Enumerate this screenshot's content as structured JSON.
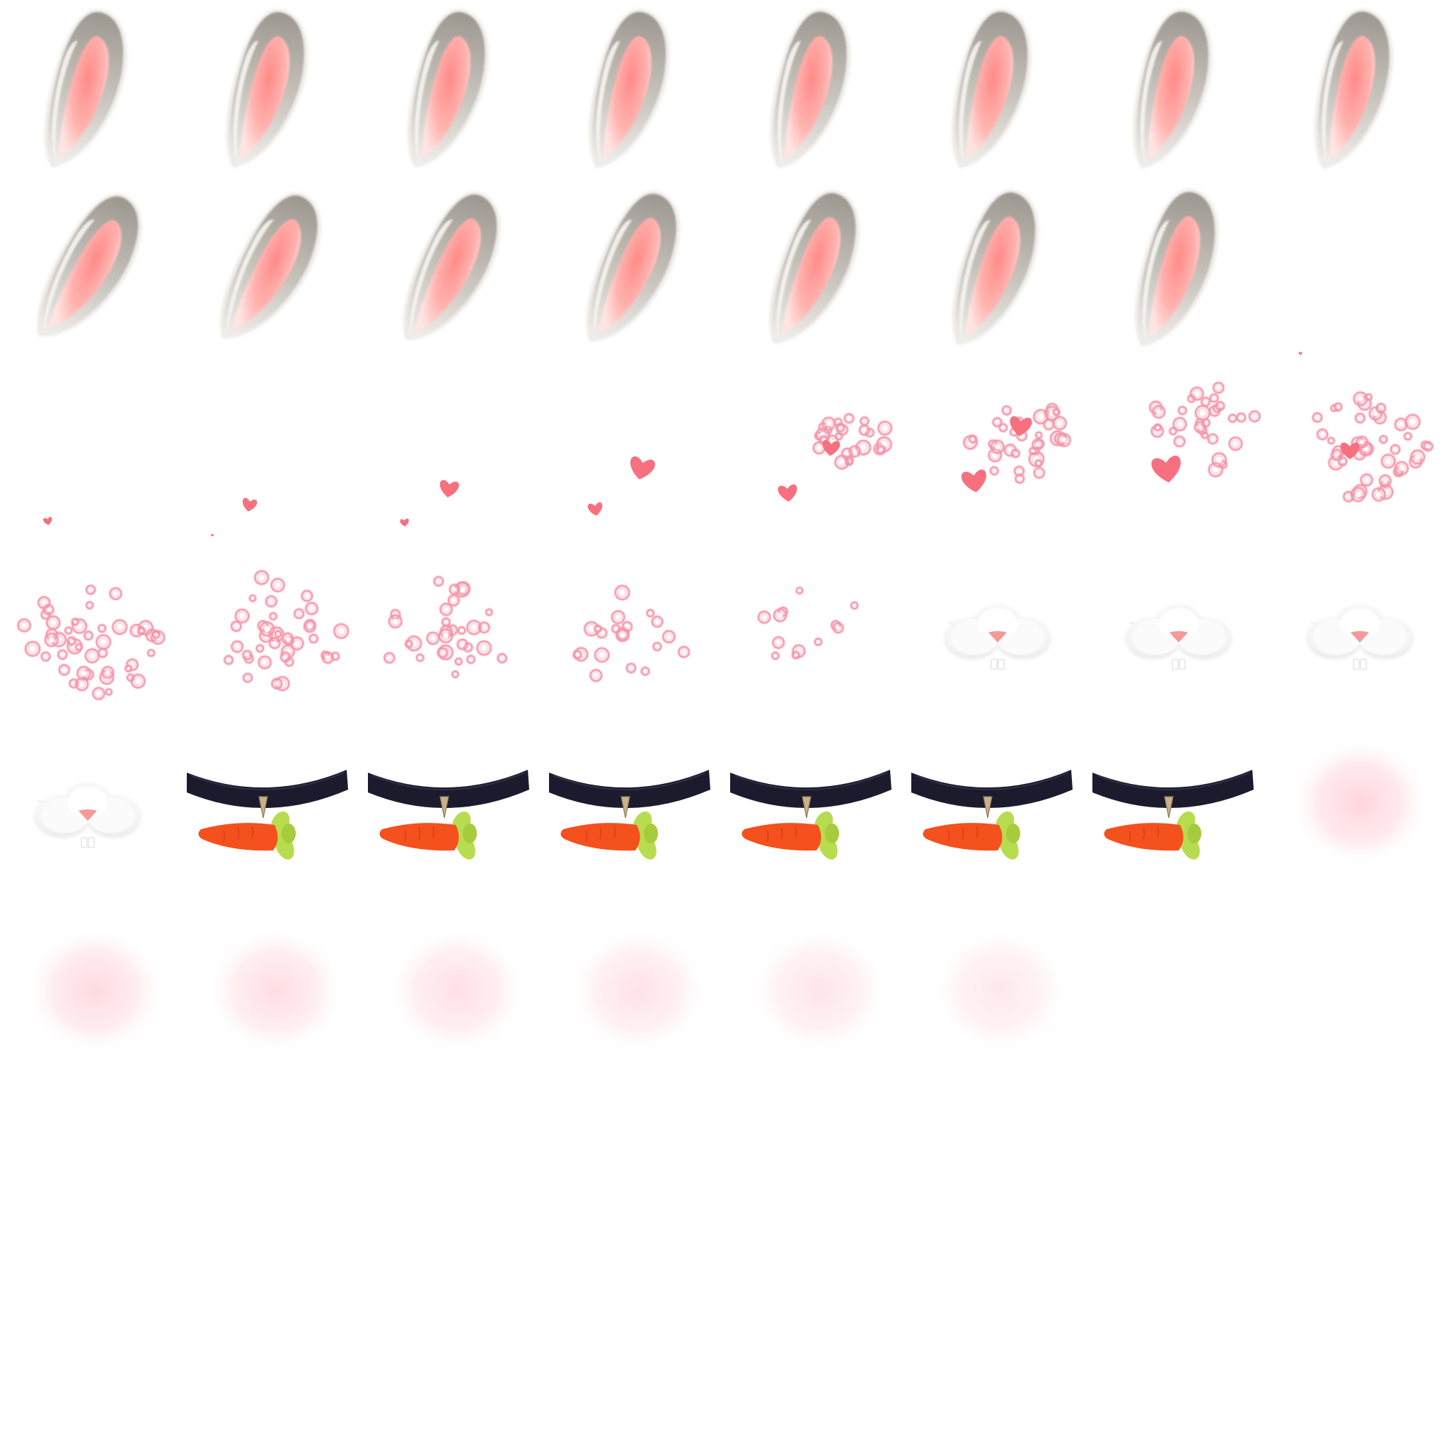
{
  "sprite_sheet": {
    "columns": 8,
    "background": "#ffffff",
    "colors": {
      "ear_fur": "#a7a29b",
      "ear_fur_light": "#e9e6e1",
      "ear_inner": "#ff8e8c",
      "ear_inner_light": "#ffd0ce",
      "heart": "#f6707f",
      "sparkle": "#f7a8b7",
      "nose_fur": "#fafafa",
      "nose": "#f59a98",
      "choker": "#1c1b2e",
      "pendant": "#c8b28a",
      "carrot": "#f4511e",
      "carrot_leaf": "#b8dc4f",
      "blush": "#ffd6dc"
    },
    "groups": [
      {
        "name": "ear-frames",
        "icon": "bunny-ear-icon",
        "frame_count": 15
      },
      {
        "name": "heart-sparkle-frames",
        "icon": "heart-sparkle-icon",
        "frame_count": 13
      },
      {
        "name": "nose-frames",
        "icon": "bunny-nose-icon",
        "frame_count": 4
      },
      {
        "name": "carrot-choker-frames",
        "icon": "carrot-choker-icon",
        "frame_count": 6
      },
      {
        "name": "blush-frames",
        "icon": "blush-icon",
        "frame_count": 7
      }
    ]
  }
}
